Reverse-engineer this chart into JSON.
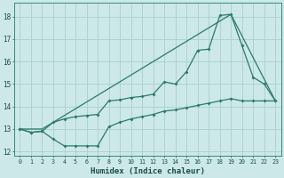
{
  "xlabel": "Humidex (Indice chaleur)",
  "bg_color": "#cce8e8",
  "grid_color": "#aad0d0",
  "line_color": "#2a7a6a",
  "xlim": [
    -0.5,
    23.5
  ],
  "ylim": [
    11.8,
    18.6
  ],
  "yticks": [
    12,
    13,
    14,
    15,
    16,
    17,
    18
  ],
  "xticks": [
    0,
    1,
    2,
    3,
    4,
    5,
    6,
    7,
    8,
    9,
    10,
    11,
    12,
    13,
    14,
    15,
    16,
    17,
    18,
    19,
    20,
    21,
    22,
    23
  ],
  "line1_x": [
    0,
    1,
    2,
    3,
    4,
    5,
    6,
    7,
    8,
    9,
    10,
    11,
    12,
    13,
    14,
    15,
    16,
    17,
    18,
    19,
    20,
    21,
    22,
    23
  ],
  "line1_y": [
    13.0,
    12.85,
    12.9,
    12.55,
    12.25,
    12.25,
    12.25,
    12.25,
    13.1,
    13.3,
    13.45,
    13.55,
    13.65,
    13.8,
    13.85,
    13.95,
    14.05,
    14.15,
    14.25,
    14.35,
    14.25,
    14.25,
    14.25,
    14.25
  ],
  "line2_x": [
    0,
    1,
    2,
    3,
    4,
    5,
    6,
    7,
    8,
    9,
    10,
    11,
    12,
    13,
    14,
    15,
    16,
    17,
    18,
    19,
    20,
    21,
    22,
    23
  ],
  "line2_y": [
    13.0,
    12.85,
    12.9,
    13.3,
    13.45,
    13.55,
    13.6,
    13.65,
    14.25,
    14.3,
    14.4,
    14.45,
    14.55,
    15.1,
    15.0,
    15.55,
    16.5,
    16.55,
    18.05,
    18.1,
    16.7,
    15.3,
    15.0,
    14.25
  ],
  "line3_x": [
    0,
    2,
    19,
    23
  ],
  "line3_y": [
    13.0,
    13.0,
    18.1,
    14.25
  ]
}
